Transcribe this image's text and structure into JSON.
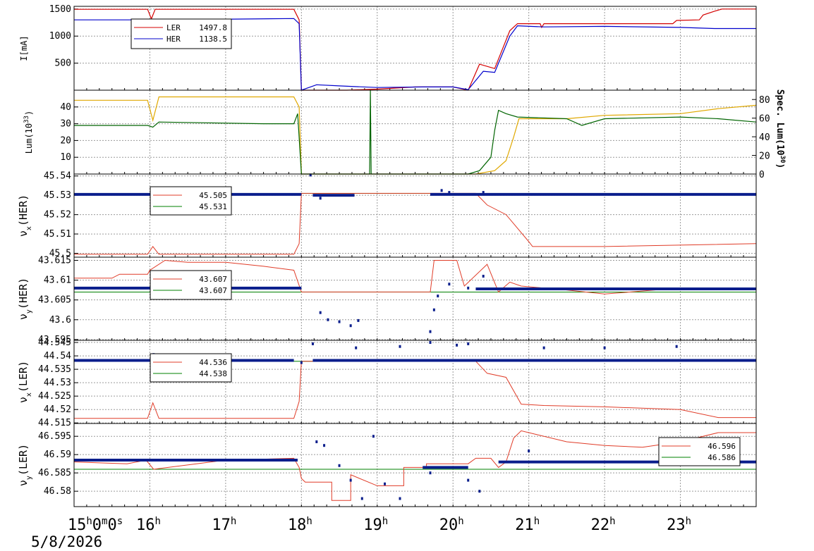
{
  "time_axis": {
    "ticks": [
      {
        "hour": 15,
        "label": "15",
        "extra": "0",
        "extra2": "0",
        "extra3": "s"
      },
      {
        "hour": 16,
        "label": "16"
      },
      {
        "hour": 17,
        "label": "17"
      },
      {
        "hour": 18,
        "label": "18"
      },
      {
        "hour": 19,
        "label": "19"
      },
      {
        "hour": 20,
        "label": "20"
      },
      {
        "hour": 21,
        "label": "21"
      },
      {
        "hour": 22,
        "label": "22"
      },
      {
        "hour": 23,
        "label": "23"
      }
    ],
    "hour_suffix": "h",
    "minute_suffix": "m",
    "date_label": "5/8/2026"
  },
  "chart_data": [
    {
      "type": "line",
      "ylabel": "I[mA]",
      "ylim": [
        0,
        1550
      ],
      "yticks": [
        500,
        1000,
        1500
      ],
      "series": [
        {
          "name": "LER",
          "color": "#d40000",
          "legend_value": "1497.8",
          "points": [
            [
              15.0,
              1495
            ],
            [
              15.97,
              1495
            ],
            [
              16.02,
              1320
            ],
            [
              16.07,
              1495
            ],
            [
              17.9,
              1495
            ],
            [
              17.97,
              1300
            ],
            [
              18.0,
              0
            ],
            [
              18.6,
              0
            ],
            [
              19.0,
              20
            ],
            [
              19.5,
              60
            ],
            [
              20.0,
              60
            ],
            [
              20.2,
              0
            ],
            [
              20.35,
              480
            ],
            [
              20.55,
              400
            ],
            [
              20.75,
              1100
            ],
            [
              20.85,
              1230
            ],
            [
              21.15,
              1230
            ],
            [
              21.17,
              1160
            ],
            [
              21.2,
              1230
            ],
            [
              22.9,
              1230
            ],
            [
              22.95,
              1290
            ],
            [
              23.25,
              1300
            ],
            [
              23.3,
              1390
            ],
            [
              23.45,
              1460
            ],
            [
              23.55,
              1500
            ],
            [
              24.0,
              1500
            ]
          ]
        },
        {
          "name": "HER",
          "color": "#0000cc",
          "legend_value": "1138.5",
          "points": [
            [
              15.0,
              1300
            ],
            [
              16.0,
              1300
            ],
            [
              16.04,
              1030
            ],
            [
              16.1,
              1300
            ],
            [
              17.9,
              1325
            ],
            [
              17.97,
              1230
            ],
            [
              18.0,
              0
            ],
            [
              18.2,
              100
            ],
            [
              18.5,
              80
            ],
            [
              19.0,
              50
            ],
            [
              19.6,
              60
            ],
            [
              20.0,
              60
            ],
            [
              20.2,
              10
            ],
            [
              20.4,
              350
            ],
            [
              20.55,
              330
            ],
            [
              20.75,
              1000
            ],
            [
              20.85,
              1190
            ],
            [
              21.2,
              1170
            ],
            [
              22.0,
              1180
            ],
            [
              23.0,
              1160
            ],
            [
              23.45,
              1140
            ],
            [
              24.0,
              1140
            ]
          ]
        }
      ]
    },
    {
      "type": "line",
      "ylabel": "Lum(10",
      "ylabel_sup": "33",
      "ylabel_end": ")",
      "ylim": [
        0,
        50
      ],
      "yticks": [
        10,
        20,
        30,
        40
      ],
      "y2label": "Spec. Lum(10",
      "y2label_sup": "30",
      "y2label_end": ")",
      "y2lim": [
        0,
        90
      ],
      "y2ticks": [
        0,
        20,
        40,
        60,
        80
      ],
      "series": [
        {
          "name": "",
          "color": "#e0a800",
          "points": [
            [
              15.0,
              44
            ],
            [
              15.97,
              44
            ],
            [
              16.04,
              32
            ],
            [
              16.12,
              46
            ],
            [
              17.9,
              46
            ],
            [
              17.97,
              40
            ],
            [
              18.0,
              0
            ],
            [
              20.0,
              0
            ],
            [
              20.3,
              0
            ],
            [
              20.55,
              2
            ],
            [
              20.7,
              8
            ],
            [
              20.8,
              22
            ],
            [
              20.87,
              33
            ],
            [
              21.5,
              33
            ],
            [
              22.0,
              35
            ],
            [
              23.0,
              36
            ],
            [
              23.5,
              39
            ],
            [
              24.0,
              41
            ]
          ]
        },
        {
          "name": "",
          "color": "#006400",
          "points": [
            [
              15.0,
              29
            ],
            [
              15.97,
              29
            ],
            [
              16.04,
              28
            ],
            [
              16.12,
              31
            ],
            [
              17.5,
              30
            ],
            [
              17.9,
              30
            ],
            [
              17.95,
              36
            ],
            [
              18.0,
              0
            ],
            [
              18.9,
              0
            ],
            [
              18.91,
              50
            ],
            [
              18.92,
              0
            ],
            [
              20.2,
              0
            ],
            [
              20.35,
              2
            ],
            [
              20.5,
              10
            ],
            [
              20.55,
              26
            ],
            [
              20.6,
              38
            ],
            [
              20.7,
              36
            ],
            [
              20.85,
              34
            ],
            [
              21.5,
              33
            ],
            [
              21.7,
              29
            ],
            [
              22.0,
              33
            ],
            [
              23.0,
              34
            ],
            [
              23.5,
              33
            ],
            [
              24.0,
              31
            ]
          ]
        }
      ]
    },
    {
      "type": "scatter",
      "ylabel": "ν",
      "ylabel_sub": "x",
      "ylabel_end": "(HER)",
      "ylim": [
        45.498,
        45.541
      ],
      "yticks": [
        45.5,
        45.51,
        45.52,
        45.53,
        45.54
      ],
      "ytick_labels": [
        "45.5",
        "45.51",
        "45.52",
        "45.53",
        "45.54"
      ],
      "legend": [
        {
          "color": "#e03c28",
          "value": "45.505"
        },
        {
          "color": "#008000",
          "value": "45.531"
        }
      ],
      "set_points": [
        [
          15.0,
          45.4995
        ],
        [
          15.97,
          45.4995
        ],
        [
          16.04,
          45.5035
        ],
        [
          16.12,
          45.4995
        ],
        [
          17.9,
          45.4995
        ],
        [
          17.97,
          45.505
        ],
        [
          18.0,
          45.531
        ],
        [
          20.3,
          45.531
        ],
        [
          20.45,
          45.525
        ],
        [
          20.7,
          45.52
        ],
        [
          21.0,
          45.506
        ],
        [
          21.05,
          45.5035
        ],
        [
          22.0,
          45.5035
        ],
        [
          24.0,
          45.505
        ]
      ],
      "ref_value": 45.531,
      "obs_segments": [
        [
          15.0,
          18.0,
          45.5305
        ],
        [
          18.15,
          18.7,
          45.53
        ],
        [
          19.7,
          24.0,
          45.5305
        ]
      ],
      "obs_extra": [
        [
          18.12,
          45.5405
        ],
        [
          18.25,
          45.5285
        ],
        [
          19.85,
          45.5325
        ],
        [
          19.95,
          45.5315
        ],
        [
          20.4,
          45.5315
        ]
      ]
    },
    {
      "type": "scatter",
      "ylabel": "ν",
      "ylabel_sub": "y",
      "ylabel_end": "(HER)",
      "ylim": [
        43.5948,
        43.6158
      ],
      "yticks": [
        43.595,
        43.6,
        43.605,
        43.61,
        43.615
      ],
      "ytick_labels": [
        "43.595",
        "43.6",
        "43.605",
        "43.61",
        "43.615"
      ],
      "legend": [
        {
          "color": "#e03c28",
          "value": "43.607"
        },
        {
          "color": "#008000",
          "value": "43.607"
        }
      ],
      "set_points": [
        [
          15.0,
          43.6105
        ],
        [
          15.5,
          43.6105
        ],
        [
          15.6,
          43.6115
        ],
        [
          15.97,
          43.6115
        ],
        [
          16.0,
          43.6125
        ],
        [
          16.2,
          43.615
        ],
        [
          16.5,
          43.6145
        ],
        [
          17.0,
          43.6145
        ],
        [
          17.5,
          43.6135
        ],
        [
          17.9,
          43.6125
        ],
        [
          18.0,
          43.607
        ],
        [
          19.7,
          43.607
        ],
        [
          19.75,
          43.615
        ],
        [
          20.05,
          43.615
        ],
        [
          20.15,
          43.6085
        ],
        [
          20.45,
          43.614
        ],
        [
          20.6,
          43.607
        ],
        [
          20.75,
          43.6095
        ],
        [
          20.9,
          43.6085
        ],
        [
          21.5,
          43.6075
        ],
        [
          22.0,
          43.6065
        ],
        [
          23.0,
          43.608
        ],
        [
          24.0,
          43.608
        ]
      ],
      "ref_value": 43.607,
      "obs_segments": [
        [
          15.0,
          16.0,
          43.608
        ],
        [
          16.0,
          18.0,
          43.608
        ],
        [
          20.3,
          24.0,
          43.6078
        ]
      ],
      "obs_extra": [
        [
          18.25,
          43.6018
        ],
        [
          18.35,
          43.6
        ],
        [
          18.5,
          43.5995
        ],
        [
          18.65,
          43.5985
        ],
        [
          18.75,
          43.5998
        ],
        [
          19.7,
          43.597
        ],
        [
          19.75,
          43.6025
        ],
        [
          19.8,
          43.606
        ],
        [
          19.95,
          43.609
        ],
        [
          20.2,
          43.608
        ],
        [
          20.4,
          43.611
        ]
      ]
    },
    {
      "type": "scatter",
      "ylabel": "ν",
      "ylabel_sub": "x",
      "ylabel_end": "(LER)",
      "ylim": [
        44.5148,
        44.5458
      ],
      "yticks": [
        44.515,
        44.52,
        44.525,
        44.53,
        44.535,
        44.54,
        44.545
      ],
      "ytick_labels": [
        "44.515",
        "44.52",
        "44.525",
        "44.53",
        "44.535",
        "44.54",
        "44.545"
      ],
      "legend": [
        {
          "color": "#e03c28",
          "value": "44.536"
        },
        {
          "color": "#008000",
          "value": "44.538"
        }
      ],
      "set_points": [
        [
          15.0,
          44.5167
        ],
        [
          15.97,
          44.5167
        ],
        [
          16.04,
          44.5225
        ],
        [
          16.12,
          44.5167
        ],
        [
          17.9,
          44.5167
        ],
        [
          17.97,
          44.523
        ],
        [
          18.0,
          44.538
        ],
        [
          20.3,
          44.538
        ],
        [
          20.45,
          44.5335
        ],
        [
          20.7,
          44.532
        ],
        [
          20.9,
          44.522
        ],
        [
          21.2,
          44.5215
        ],
        [
          22.0,
          44.521
        ],
        [
          23.0,
          44.52
        ],
        [
          23.5,
          44.517
        ],
        [
          24.0,
          44.517
        ]
      ],
      "ref_value": 44.538,
      "obs_segments": [
        [
          15.0,
          17.9,
          44.5383
        ],
        [
          18.15,
          24.0,
          44.5383
        ]
      ],
      "obs_extra": [
        [
          16.05,
          44.5405
        ],
        [
          18.15,
          44.5445
        ],
        [
          18.72,
          44.543
        ],
        [
          19.3,
          44.5435
        ],
        [
          19.7,
          44.545
        ],
        [
          20.05,
          44.544
        ],
        [
          20.2,
          44.5445
        ],
        [
          21.2,
          44.543
        ],
        [
          22.0,
          44.543
        ],
        [
          22.95,
          44.5435
        ],
        [
          18.0,
          44.5375
        ]
      ]
    },
    {
      "type": "scatter",
      "ylabel": "ν",
      "ylabel_sub": "y",
      "ylabel_end": "(LER)",
      "ylim": [
        46.5758,
        46.5985
      ],
      "yticks": [
        46.58,
        46.585,
        46.59,
        46.595
      ],
      "ytick_labels": [
        "46.58",
        "46.585",
        "46.59",
        "46.595"
      ],
      "legend": [
        {
          "color": "#e03c28",
          "value": "46.596"
        },
        {
          "color": "#008000",
          "value": "46.586"
        }
      ],
      "set_points": [
        [
          15.0,
          46.588
        ],
        [
          15.7,
          46.5875
        ],
        [
          15.95,
          46.5885
        ],
        [
          16.05,
          46.586
        ],
        [
          17.0,
          46.5885
        ],
        [
          17.9,
          46.589
        ],
        [
          17.97,
          46.5865
        ],
        [
          18.0,
          46.5835
        ],
        [
          18.05,
          46.5825
        ],
        [
          18.4,
          46.5825
        ],
        [
          18.4,
          46.5775
        ],
        [
          18.65,
          46.5775
        ],
        [
          18.65,
          46.5845
        ],
        [
          19.0,
          46.5815
        ],
        [
          19.35,
          46.5815
        ],
        [
          19.35,
          46.5865
        ],
        [
          19.65,
          46.5865
        ],
        [
          19.65,
          46.5875
        ],
        [
          20.2,
          46.5875
        ],
        [
          20.3,
          46.589
        ],
        [
          20.5,
          46.589
        ],
        [
          20.6,
          46.5865
        ],
        [
          20.7,
          46.588
        ],
        [
          20.8,
          46.5945
        ],
        [
          20.9,
          46.5965
        ],
        [
          21.1,
          46.5955
        ],
        [
          21.5,
          46.5935
        ],
        [
          22.0,
          46.5925
        ],
        [
          22.5,
          46.592
        ],
        [
          23.0,
          46.5935
        ],
        [
          23.5,
          46.596
        ],
        [
          24.0,
          46.596
        ]
      ],
      "ref_value": 46.586,
      "obs_segments": [
        [
          15.0,
          17.95,
          46.5885
        ],
        [
          19.6,
          20.2,
          46.5865
        ],
        [
          20.6,
          24.0,
          46.588
        ]
      ],
      "obs_extra": [
        [
          18.2,
          46.5935
        ],
        [
          18.3,
          46.5925
        ],
        [
          18.5,
          46.587
        ],
        [
          18.65,
          46.583
        ],
        [
          18.8,
          46.578
        ],
        [
          18.95,
          46.595
        ],
        [
          19.1,
          46.582
        ],
        [
          19.3,
          46.578
        ],
        [
          19.7,
          46.585
        ],
        [
          20.2,
          46.583
        ],
        [
          20.35,
          46.58
        ],
        [
          21.0,
          46.591
        ]
      ]
    }
  ]
}
